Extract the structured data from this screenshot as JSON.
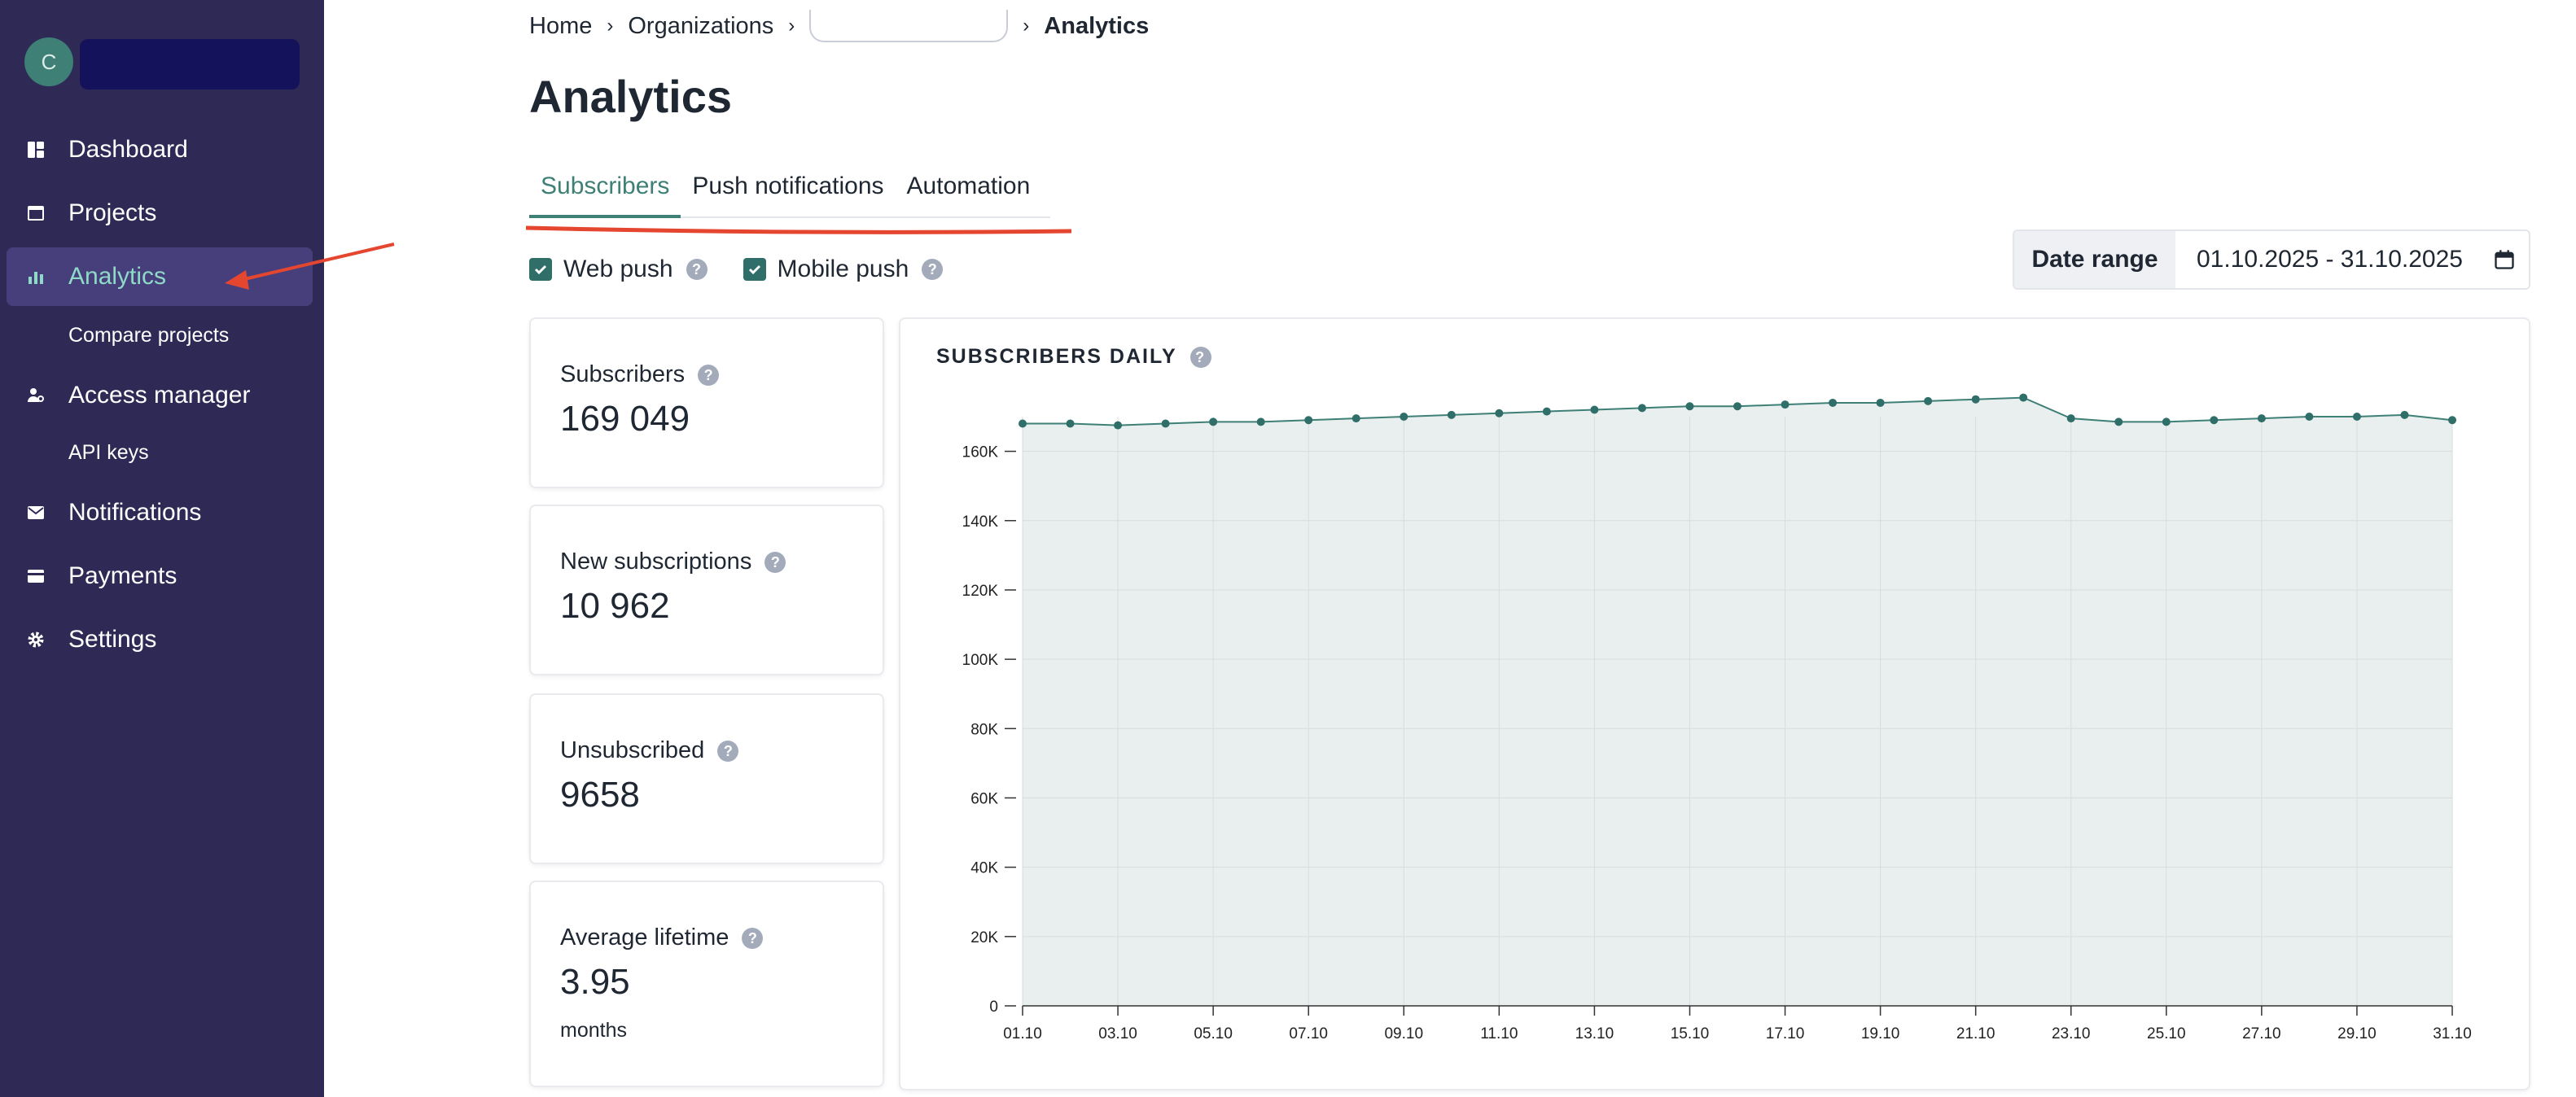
{
  "sidebar": {
    "avatar_letter": "C",
    "items": [
      {
        "label": "Dashboard",
        "icon": "dashboard-icon"
      },
      {
        "label": "Projects",
        "icon": "projects-icon"
      },
      {
        "label": "Analytics",
        "icon": "analytics-icon",
        "active": true
      },
      {
        "label": "Access manager",
        "icon": "access-icon"
      },
      {
        "label": "Notifications",
        "icon": "mail-icon"
      },
      {
        "label": "Payments",
        "icon": "card-icon"
      },
      {
        "label": "Settings",
        "icon": "gear-icon"
      }
    ],
    "sub": {
      "compare": "Compare projects",
      "api": "API keys"
    }
  },
  "breadcrumb": {
    "home": "Home",
    "orgs": "Organizations",
    "current": "Analytics"
  },
  "page_title": "Analytics",
  "tabs": [
    "Subscribers",
    "Push notifications",
    "Automation"
  ],
  "filters": {
    "web_push": "Web push",
    "mobile_push": "Mobile push"
  },
  "date_range": {
    "label": "Date range",
    "value": "01.10.2025 - 31.10.2025"
  },
  "cards": [
    {
      "label": "Subscribers",
      "value": "169 049"
    },
    {
      "label": "New subscriptions",
      "value": "10 962"
    },
    {
      "label": "Unsubscribed",
      "value": "9658"
    },
    {
      "label": "Average lifetime",
      "value": "3.95",
      "unit": "months"
    }
  ],
  "colors": {
    "accent": "#3e7f76",
    "sidebar": "#2f2956",
    "annotation": "#e5462f"
  },
  "chart_data": {
    "type": "area",
    "title": "SUBSCRIBERS DAILY",
    "ylim": [
      0,
      170000
    ],
    "y_ticks": [
      0,
      20000,
      40000,
      60000,
      80000,
      100000,
      120000,
      140000,
      160000
    ],
    "y_tick_labels": [
      "0",
      "20K",
      "40K",
      "60K",
      "80K",
      "100K",
      "120K",
      "140K",
      "160K"
    ],
    "x": [
      "01.10",
      "02.10",
      "03.10",
      "04.10",
      "05.10",
      "06.10",
      "07.10",
      "08.10",
      "09.10",
      "10.10",
      "11.10",
      "12.10",
      "13.10",
      "14.10",
      "15.10",
      "16.10",
      "17.10",
      "18.10",
      "19.10",
      "20.10",
      "21.10",
      "22.10",
      "23.10",
      "24.10",
      "25.10",
      "26.10",
      "27.10",
      "28.10",
      "29.10",
      "30.10",
      "31.10"
    ],
    "x_tick_labels": [
      "01.10",
      "03.10",
      "05.10",
      "07.10",
      "09.10",
      "11.10",
      "13.10",
      "15.10",
      "17.10",
      "19.10",
      "21.10",
      "23.10",
      "25.10",
      "27.10",
      "29.10",
      "31.10"
    ],
    "values": [
      168000,
      168000,
      167500,
      168000,
      168500,
      168500,
      169000,
      169500,
      170000,
      170500,
      171000,
      171500,
      172000,
      172500,
      173000,
      173000,
      173500,
      174000,
      174000,
      174500,
      175000,
      175500,
      169500,
      168500,
      168500,
      169000,
      169500,
      170000,
      170000,
      170500,
      169000
    ]
  }
}
